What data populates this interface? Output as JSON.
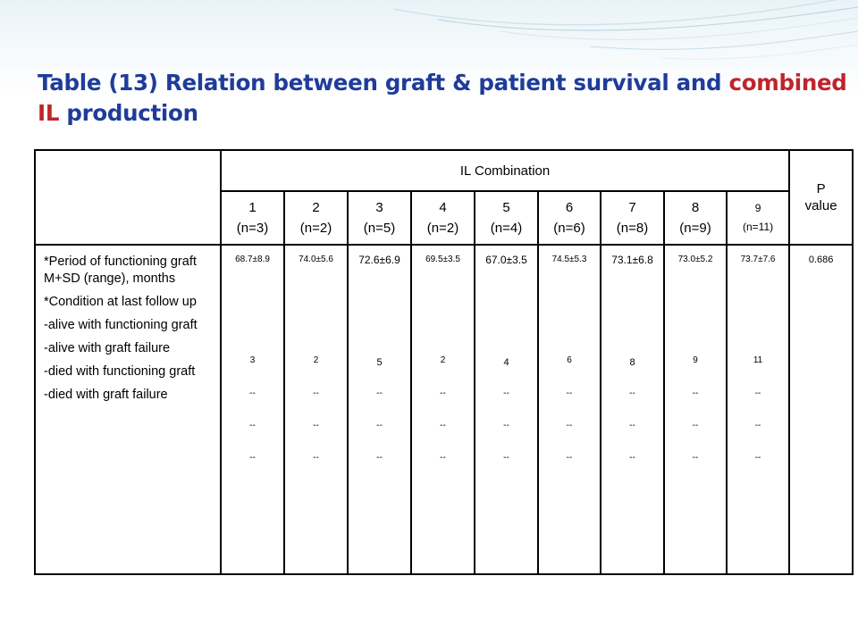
{
  "title": {
    "part1": "Table (13) Relation between graft & patient survival and ",
    "accent": "combined IL",
    "part2": " production"
  },
  "table": {
    "group_header": "IL Combination",
    "p_header_line1": "P",
    "p_header_line2": "value",
    "columns": [
      {
        "num": "1",
        "n": "(n=3)",
        "mean": "68.7±8.9",
        "alive_func": "3",
        "alive_fail": "--",
        "died_func": "--",
        "died_fail": "--"
      },
      {
        "num": "2",
        "n": "(n=2)",
        "mean": "74.0±5.6",
        "alive_func": "2",
        "alive_fail": "--",
        "died_func": "--",
        "died_fail": "--"
      },
      {
        "num": "3",
        "n": "(n=5)",
        "mean": "72.6±6.9",
        "alive_func": "5",
        "alive_fail": "--",
        "died_func": "--",
        "died_fail": "--"
      },
      {
        "num": "4",
        "n": "(n=2)",
        "mean": "69.5±3.5",
        "alive_func": "2",
        "alive_fail": "--",
        "died_func": "--",
        "died_fail": "--"
      },
      {
        "num": "5",
        "n": "(n=4)",
        "mean": "67.0±3.5",
        "alive_func": "4",
        "alive_fail": "--",
        "died_func": "--",
        "died_fail": "--"
      },
      {
        "num": "6",
        "n": "(n=6)",
        "mean": "74.5±5.3",
        "alive_func": "6",
        "alive_fail": "--",
        "died_func": "--",
        "died_fail": "--"
      },
      {
        "num": "7",
        "n": "(n=8)",
        "mean": "73.1±6.8",
        "alive_func": "8",
        "alive_fail": "--",
        "died_func": "--",
        "died_fail": "--"
      },
      {
        "num": "8",
        "n": "(n=9)",
        "mean": "73.0±5.2",
        "alive_func": "9",
        "alive_fail": "--",
        "died_func": "--",
        "died_fail": "--"
      },
      {
        "num": "9",
        "n": "(n=11)",
        "mean": "73.7±7.6",
        "alive_func": "11",
        "alive_fail": "--",
        "died_func": "--",
        "died_fail": "--"
      }
    ],
    "row_labels": {
      "period": "*Period of functioning graft M+SD (range), months",
      "condition": "*Condition at last follow up",
      "alive_func": "-alive with functioning graft",
      "alive_fail": "-alive with graft failure",
      "died_func": "-died with functioning graft",
      "died_fail": "-died with graft failure"
    },
    "p_value": "0.686"
  }
}
